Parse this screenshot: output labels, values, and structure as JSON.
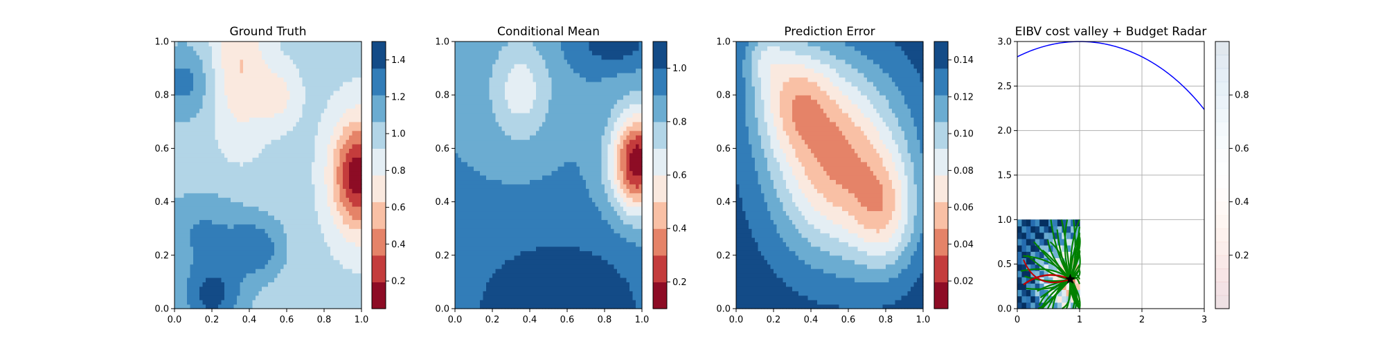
{
  "chart_data": [
    {
      "type": "heatmap",
      "title": "Ground Truth",
      "xlim": [
        0,
        1
      ],
      "ylim": [
        0,
        1
      ],
      "xticks": [
        "0.0",
        "0.2",
        "0.4",
        "0.6",
        "0.8",
        "1.0"
      ],
      "yticks": [
        "0.0",
        "0.2",
        "0.4",
        "0.6",
        "0.8",
        "1.0"
      ],
      "colormap": "RdBu",
      "colorbar": {
        "range": [
          0.05,
          1.5
        ],
        "ticks": [
          "0.2",
          "0.4",
          "0.6",
          "0.8",
          "1.0",
          "1.2",
          "1.4"
        ],
        "tick_values": [
          0.2,
          0.4,
          0.6,
          0.8,
          1.0,
          1.2,
          1.4
        ]
      },
      "levels": [
        0.05,
        0.15,
        0.3,
        0.45,
        0.6,
        0.75,
        0.9,
        1.05,
        1.2,
        1.35,
        1.5
      ],
      "field": {
        "base": 0.95,
        "terms": [
          {
            "a": -0.9,
            "x": 0.98,
            "y": 0.5,
            "sx": 0.1,
            "sy": 0.15
          },
          {
            "a": -0.35,
            "x": 0.35,
            "y": 0.92,
            "sx": 0.1,
            "sy": 0.2
          },
          {
            "a": -0.25,
            "x": 0.55,
            "y": 0.8,
            "sx": 0.08,
            "sy": 0.08
          },
          {
            "a": 0.3,
            "x": 0.05,
            "y": 0.85,
            "sx": 0.1,
            "sy": 0.1
          },
          {
            "a": 0.45,
            "x": 0.2,
            "y": 0.05,
            "sx": 0.12,
            "sy": 0.1
          },
          {
            "a": 0.3,
            "x": 0.45,
            "y": 0.22,
            "sx": 0.1,
            "sy": 0.08
          },
          {
            "a": 0.25,
            "x": 0.15,
            "y": 0.3,
            "sx": 0.2,
            "sy": 0.1
          }
        ]
      }
    },
    {
      "type": "heatmap",
      "title": "Conditional Mean",
      "xlim": [
        0,
        1
      ],
      "ylim": [
        0,
        1
      ],
      "xticks": [
        "0.0",
        "0.2",
        "0.4",
        "0.6",
        "0.8",
        "1.0"
      ],
      "yticks": [
        "0.0",
        "0.2",
        "0.4",
        "0.6",
        "0.8",
        "1.0"
      ],
      "colormap": "RdBu",
      "colorbar": {
        "range": [
          0.1,
          1.1
        ],
        "ticks": [
          "0.2",
          "0.4",
          "0.6",
          "0.8",
          "1.0"
        ],
        "tick_values": [
          0.2,
          0.4,
          0.6,
          0.8,
          1.0
        ]
      },
      "levels": [
        0.1,
        0.2,
        0.3,
        0.4,
        0.5,
        0.6,
        0.7,
        0.8,
        0.9,
        1.0,
        1.1
      ],
      "field": {
        "base": 0.9,
        "terms": [
          {
            "a": -0.78,
            "x": 0.98,
            "y": 0.55,
            "sx": 0.1,
            "sy": 0.13
          },
          {
            "a": -0.25,
            "x": 0.35,
            "y": 0.82,
            "sx": 0.12,
            "sy": 0.14
          },
          {
            "a": 0.2,
            "x": 0.55,
            "y": 0.0,
            "sx": 0.35,
            "sy": 0.2
          },
          {
            "a": 0.15,
            "x": 0.85,
            "y": 0.98,
            "sx": 0.15,
            "sy": 0.05
          }
        ]
      }
    },
    {
      "type": "heatmap",
      "title": "Prediction Error",
      "xlim": [
        0,
        1
      ],
      "ylim": [
        0,
        1
      ],
      "xticks": [
        "0.0",
        "0.2",
        "0.4",
        "0.6",
        "0.8",
        "1.0"
      ],
      "yticks": [
        "0.0",
        "0.2",
        "0.4",
        "0.6",
        "0.8",
        "1.0"
      ],
      "colormap": "RdBu",
      "colorbar": {
        "range": [
          0.005,
          0.15
        ],
        "ticks": [
          "0.02",
          "0.04",
          "0.06",
          "0.08",
          "0.10",
          "0.12",
          "0.14"
        ],
        "tick_values": [
          0.02,
          0.04,
          0.06,
          0.08,
          0.1,
          0.12,
          0.14
        ]
      },
      "levels": [
        0.005,
        0.02,
        0.035,
        0.05,
        0.065,
        0.08,
        0.095,
        0.11,
        0.125,
        0.14,
        0.155
      ],
      "field": {
        "base": 0.15,
        "terms": [
          {
            "a": -0.1,
            "x": 0.55,
            "y": 0.55,
            "sx": 0.25,
            "sy": 0.25
          },
          {
            "a": -0.06,
            "x": 0.3,
            "y": 0.8,
            "sx": 0.15,
            "sy": 0.15
          },
          {
            "a": -0.05,
            "x": 0.8,
            "y": 0.35,
            "sx": 0.12,
            "sy": 0.15
          },
          {
            "a": -0.03,
            "x": 0.15,
            "y": 0.95,
            "sx": 0.08,
            "sy": 0.08
          }
        ],
        "clip_low": 0.01
      }
    },
    {
      "type": "heatmap",
      "title": "EIBV cost valley + Budget Radar",
      "xlim": [
        0,
        3
      ],
      "ylim": [
        0,
        3
      ],
      "xticks": [
        "0",
        "1",
        "2",
        "3"
      ],
      "yticks": [
        "0.0",
        "0.5",
        "1.0",
        "1.5",
        "2.0",
        "2.5",
        "3.0"
      ],
      "grid": true,
      "colormap": "RdBu",
      "colorbar": {
        "range": [
          0.0,
          1.0
        ],
        "ticks": [
          "0.2",
          "0.4",
          "0.6",
          "0.8"
        ],
        "tick_values": [
          0.2,
          0.4,
          0.6,
          0.8
        ],
        "alpha": 0.12
      },
      "budget_arc": {
        "cx": 1.0,
        "cy": 0.0,
        "r": 3.0,
        "color": "#0000ff"
      },
      "current_location": {
        "x": 0.85,
        "y": 0.33
      },
      "previous_location": {
        "x": 0.1,
        "y": 0.27
      },
      "paths_origin": {
        "x": 0.85,
        "y": 0.33
      },
      "colors": {
        "paths": "#008000",
        "previous_path": "#c00000",
        "marker": "#000000"
      }
    }
  ]
}
